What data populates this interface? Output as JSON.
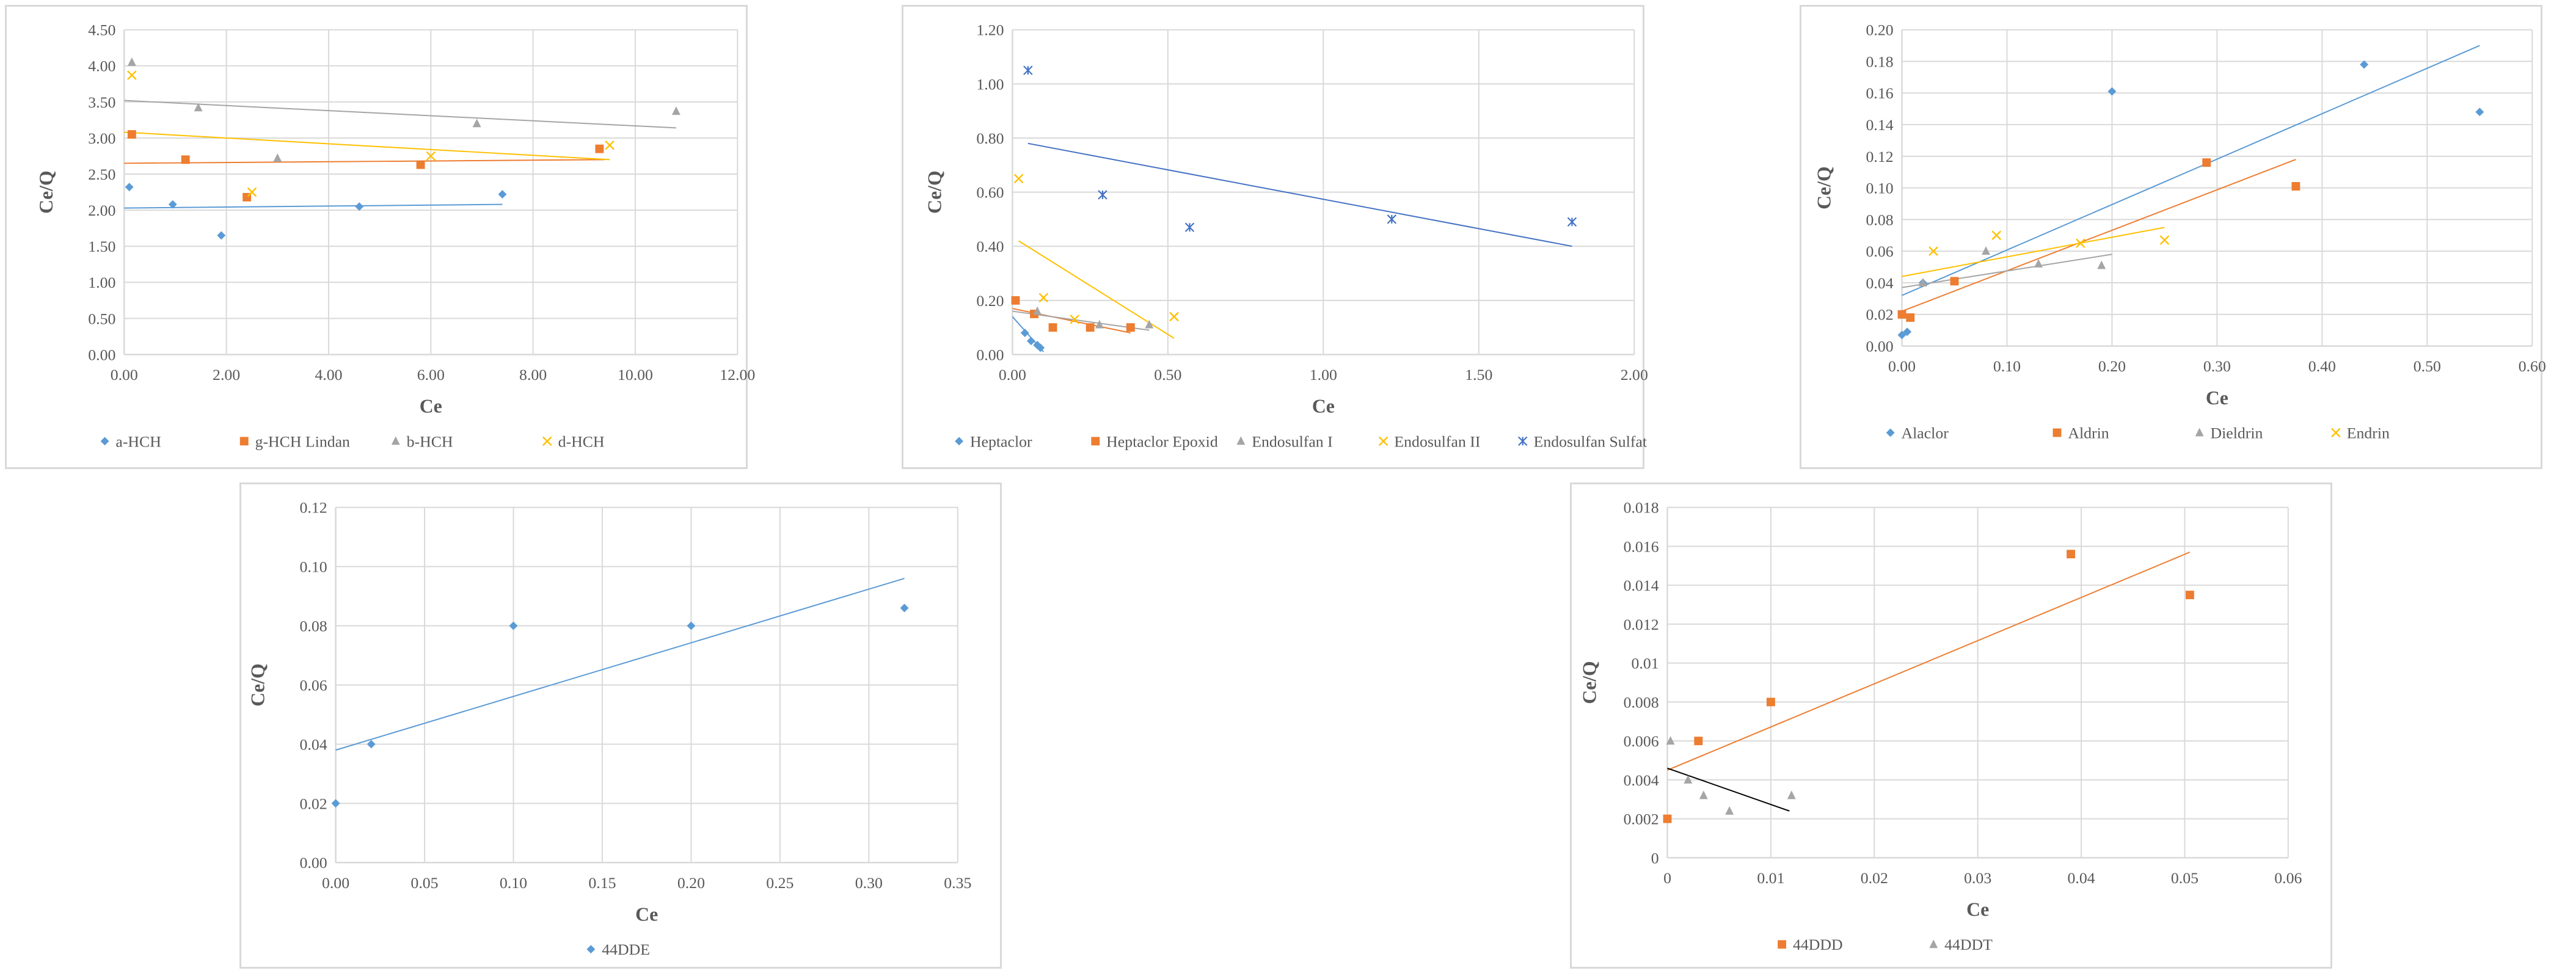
{
  "colors": {
    "blue": "#5b9bd5",
    "orange": "#ed7d31",
    "gray": "#a5a5a5",
    "yellow": "#ffc000",
    "navy": "#4472c4",
    "black": "#000000",
    "grid": "#d9d9d9",
    "text": "#595959"
  },
  "chart_data": [
    {
      "type": "scatter",
      "title": "",
      "xlabel": "Ce",
      "ylabel": "Ce/Q",
      "xlim": [
        0,
        12
      ],
      "ylim": [
        0,
        4.5
      ],
      "x_ticks": [
        "0.00",
        "2.00",
        "4.00",
        "6.00",
        "8.00",
        "10.00",
        "12.00"
      ],
      "y_ticks": [
        "0.00",
        "0.50",
        "1.00",
        "1.50",
        "2.00",
        "2.50",
        "3.00",
        "3.50",
        "4.00",
        "4.50"
      ],
      "legend_position": "bottom",
      "series": [
        {
          "name": "a-HCH",
          "marker": "diamond",
          "color": "#5b9bd5",
          "x": [
            0.1,
            0.95,
            1.9,
            4.6,
            7.4
          ],
          "y": [
            2.32,
            2.08,
            1.65,
            2.05,
            2.22
          ],
          "trendline": [
            [
              0,
              2.03
            ],
            [
              7.4,
              2.08
            ]
          ]
        },
        {
          "name": "g-HCH Lindan",
          "marker": "square",
          "color": "#ed7d31",
          "x": [
            0.15,
            1.2,
            2.4,
            5.8,
            9.3
          ],
          "y": [
            3.05,
            2.7,
            2.18,
            2.63,
            2.85
          ],
          "trendline": [
            [
              0,
              2.65
            ],
            [
              9.4,
              2.7
            ]
          ]
        },
        {
          "name": "b-HCH",
          "marker": "triangle",
          "color": "#a5a5a5",
          "x": [
            0.15,
            1.45,
            3.0,
            6.9,
            10.8
          ],
          "y": [
            4.05,
            3.42,
            2.72,
            3.2,
            3.37
          ],
          "trendline": [
            [
              0,
              3.52
            ],
            [
              10.8,
              3.14
            ]
          ]
        },
        {
          "name": "d-HCH",
          "marker": "x",
          "color": "#ffc000",
          "x": [
            0.15,
            2.5,
            6.0,
            9.5
          ],
          "y": [
            3.87,
            2.25,
            2.75,
            2.9
          ],
          "trendline": [
            [
              0,
              3.08
            ],
            [
              9.5,
              2.7
            ]
          ]
        }
      ]
    },
    {
      "type": "scatter",
      "title": "",
      "xlabel": "Ce",
      "ylabel": "Ce/Q",
      "xlim": [
        0,
        2
      ],
      "ylim": [
        0,
        1.2
      ],
      "x_ticks": [
        "0.00",
        "0.50",
        "1.00",
        "1.50",
        "2.00"
      ],
      "y_ticks": [
        "0.00",
        "0.20",
        "0.40",
        "0.60",
        "0.80",
        "1.00",
        "1.20"
      ],
      "legend_position": "bottom",
      "series": [
        {
          "name": "Heptaclor",
          "marker": "diamond",
          "color": "#5b9bd5",
          "x": [
            0.04,
            0.06,
            0.08,
            0.09
          ],
          "y": [
            0.08,
            0.05,
            0.035,
            0.025
          ],
          "trendline": [
            [
              0.0,
              0.14
            ],
            [
              0.1,
              0.01
            ]
          ]
        },
        {
          "name": "Heptaclor Epoxid",
          "marker": "square",
          "color": "#ed7d31",
          "x": [
            0.01,
            0.07,
            0.13,
            0.25,
            0.38
          ],
          "y": [
            0.2,
            0.15,
            0.1,
            0.1,
            0.1
          ],
          "trendline": [
            [
              0.0,
              0.17
            ],
            [
              0.38,
              0.08
            ]
          ]
        },
        {
          "name": "Endosulfan I",
          "marker": "triangle",
          "color": "#a5a5a5",
          "x": [
            0.08,
            0.28,
            0.44
          ],
          "y": [
            0.16,
            0.11,
            0.11
          ],
          "trendline": [
            [
              0.0,
              0.16
            ],
            [
              0.44,
              0.09
            ]
          ]
        },
        {
          "name": "Endosulfan II",
          "marker": "x",
          "color": "#ffc000",
          "x": [
            0.02,
            0.1,
            0.2,
            0.52
          ],
          "y": [
            0.65,
            0.21,
            0.13,
            0.14
          ],
          "trendline": [
            [
              0.02,
              0.42
            ],
            [
              0.52,
              0.06
            ]
          ]
        },
        {
          "name": "Endosulfan Sulfat",
          "marker": "asterisk",
          "color": "#4472c4",
          "x": [
            0.05,
            0.29,
            0.57,
            1.22,
            1.8
          ],
          "y": [
            1.05,
            0.59,
            0.47,
            0.5,
            0.49
          ],
          "trendline": [
            [
              0.05,
              0.78
            ],
            [
              1.8,
              0.4
            ]
          ]
        }
      ]
    },
    {
      "type": "scatter",
      "title": "",
      "xlabel": "Ce",
      "ylabel": "Ce/Q",
      "xlim": [
        0,
        0.6
      ],
      "ylim": [
        0,
        0.2
      ],
      "x_ticks": [
        "0.00",
        "0.10",
        "0.20",
        "0.30",
        "0.40",
        "0.50",
        "0.60"
      ],
      "y_ticks": [
        "0.00",
        "0.02",
        "0.04",
        "0.06",
        "0.08",
        "0.10",
        "0.12",
        "0.14",
        "0.16",
        "0.18",
        "0.20"
      ],
      "legend_position": "bottom",
      "series": [
        {
          "name": "Alaclor",
          "marker": "diamond",
          "color": "#5b9bd5",
          "x": [
            0.0,
            0.005,
            0.02,
            0.2,
            0.44,
            0.55
          ],
          "y": [
            0.007,
            0.009,
            0.04,
            0.161,
            0.178,
            0.148
          ],
          "trendline": [
            [
              0.0,
              0.032
            ],
            [
              0.55,
              0.19
            ]
          ]
        },
        {
          "name": "Aldrin",
          "marker": "square",
          "color": "#ed7d31",
          "x": [
            0.0,
            0.008,
            0.05,
            0.29,
            0.375
          ],
          "y": [
            0.02,
            0.018,
            0.041,
            0.116,
            0.101
          ],
          "trendline": [
            [
              0.0,
              0.022
            ],
            [
              0.375,
              0.118
            ]
          ]
        },
        {
          "name": "Dieldrin",
          "marker": "triangle",
          "color": "#a5a5a5",
          "x": [
            0.02,
            0.08,
            0.13,
            0.19
          ],
          "y": [
            0.04,
            0.06,
            0.052,
            0.051
          ],
          "trendline": [
            [
              0.0,
              0.037
            ],
            [
              0.2,
              0.058
            ]
          ]
        },
        {
          "name": "Endrin",
          "marker": "x",
          "color": "#ffc000",
          "x": [
            0.03,
            0.09,
            0.17,
            0.25
          ],
          "y": [
            0.06,
            0.07,
            0.065,
            0.067
          ],
          "trendline": [
            [
              0.0,
              0.044
            ],
            [
              0.25,
              0.075
            ]
          ]
        }
      ]
    },
    {
      "type": "scatter",
      "title": "",
      "xlabel": "Ce",
      "ylabel": "Ce/Q",
      "xlim": [
        0,
        0.35
      ],
      "ylim": [
        0,
        0.12
      ],
      "x_ticks": [
        "0.00",
        "0.05",
        "0.10",
        "0.15",
        "0.20",
        "0.25",
        "0.30",
        "0.35"
      ],
      "y_ticks": [
        "0.00",
        "0.02",
        "0.04",
        "0.06",
        "0.08",
        "0.10",
        "0.12"
      ],
      "legend_position": "bottom",
      "series": [
        {
          "name": "44DDE",
          "marker": "diamond",
          "color": "#5b9bd5",
          "x": [
            0.0,
            0.02,
            0.1,
            0.2,
            0.32
          ],
          "y": [
            0.02,
            0.04,
            0.08,
            0.08,
            0.086
          ],
          "trendline": [
            [
              0.0,
              0.038
            ],
            [
              0.32,
              0.096
            ]
          ]
        }
      ]
    },
    {
      "type": "scatter",
      "title": "",
      "xlabel": "Ce",
      "ylabel": "Ce/Q",
      "xlim": [
        0,
        0.06
      ],
      "ylim": [
        0,
        0.018
      ],
      "x_ticks": [
        "0",
        "0.01",
        "0.02",
        "0.03",
        "0.04",
        "0.05",
        "0.06"
      ],
      "y_ticks": [
        "0",
        "0.002",
        "0.004",
        "0.006",
        "0.008",
        "0.01",
        "0.012",
        "0.014",
        "0.016",
        "0.018"
      ],
      "legend_position": "bottom",
      "series": [
        {
          "name": "44DDD",
          "marker": "square",
          "color": "#ed7d31",
          "x": [
            0.0,
            0.003,
            0.01,
            0.039,
            0.0505
          ],
          "y": [
            0.002,
            0.006,
            0.008,
            0.0156,
            0.0135
          ],
          "trendline": [
            [
              0.0,
              0.0045
            ],
            [
              0.0505,
              0.0157
            ]
          ]
        },
        {
          "name": "44DDT",
          "marker": "triangle",
          "color": "#a5a5a5",
          "x": [
            0.0003,
            0.002,
            0.0035,
            0.006,
            0.012
          ],
          "y": [
            0.006,
            0.004,
            0.0032,
            0.0024,
            0.0032
          ],
          "trendline": [
            [
              0.0,
              0.0046
            ],
            [
              0.0118,
              0.0024
            ]
          ],
          "trend_color": "#000000"
        }
      ]
    }
  ]
}
